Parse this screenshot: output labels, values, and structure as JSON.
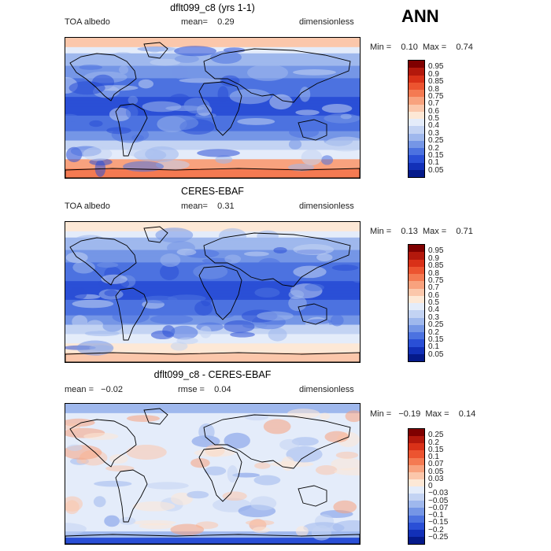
{
  "season": "ANN",
  "panels": [
    {
      "title": "dflt099_c8 (yrs 1-1)",
      "left_label": "TOA albedo",
      "center_label": "mean=    0.29",
      "right_label": "dimensionless",
      "min_max": "Min =    0.10  Max =    0.74",
      "colorbar_labels": [
        "0.95",
        "0.9",
        "0.85",
        "0.8",
        "0.75",
        "0.7",
        "0.6",
        "0.5",
        "0.4",
        "0.3",
        "0.25",
        "0.2",
        "0.15",
        "0.1",
        "0.05"
      ],
      "colors": [
        "#7f0000",
        "#b3180c",
        "#d93118",
        "#ec5430",
        "#f47a52",
        "#f8a27e",
        "#fbc7ab",
        "#fde8d6",
        "#e4ecfa",
        "#c3d3f3",
        "#9fb8ed",
        "#7596e6",
        "#4c72e0",
        "#2a4fd6",
        "#1230b8",
        "#051a8a"
      ]
    },
    {
      "title": "CERES-EBAF",
      "left_label": "TOA albedo",
      "center_label": "mean=    0.31",
      "right_label": "dimensionless",
      "min_max": "Min =    0.13  Max =    0.71",
      "colorbar_labels": [
        "0.95",
        "0.9",
        "0.85",
        "0.8",
        "0.75",
        "0.7",
        "0.6",
        "0.5",
        "0.4",
        "0.3",
        "0.25",
        "0.2",
        "0.15",
        "0.1",
        "0.05"
      ],
      "colors": [
        "#7f0000",
        "#b3180c",
        "#d93118",
        "#ec5430",
        "#f47a52",
        "#f8a27e",
        "#fbc7ab",
        "#fde8d6",
        "#e4ecfa",
        "#c3d3f3",
        "#9fb8ed",
        "#7596e6",
        "#4c72e0",
        "#2a4fd6",
        "#1230b8",
        "#051a8a"
      ]
    },
    {
      "title": "dflt099_c8 - CERES-EBAF",
      "left_label": "mean =   −0.02",
      "center_label": "rmse =    0.04",
      "right_label": "dimensionless",
      "min_max": "Min =   −0.19  Max =    0.14",
      "colorbar_labels": [
        "0.25",
        "0.2",
        "0.15",
        "0.1",
        "0.07",
        "0.05",
        "0.03",
        "0",
        "−0.03",
        "−0.05",
        "−0.07",
        "−0.1",
        "−0.15",
        "−0.2",
        "−0.25"
      ],
      "colors": [
        "#7f0000",
        "#b3180c",
        "#d93118",
        "#ec5430",
        "#f47a52",
        "#f8a27e",
        "#fbc7ab",
        "#fde8d6",
        "#e4ecfa",
        "#c3d3f3",
        "#9fb8ed",
        "#7596e6",
        "#4c72e0",
        "#2a4fd6",
        "#1230b8",
        "#051a8a"
      ]
    }
  ]
}
